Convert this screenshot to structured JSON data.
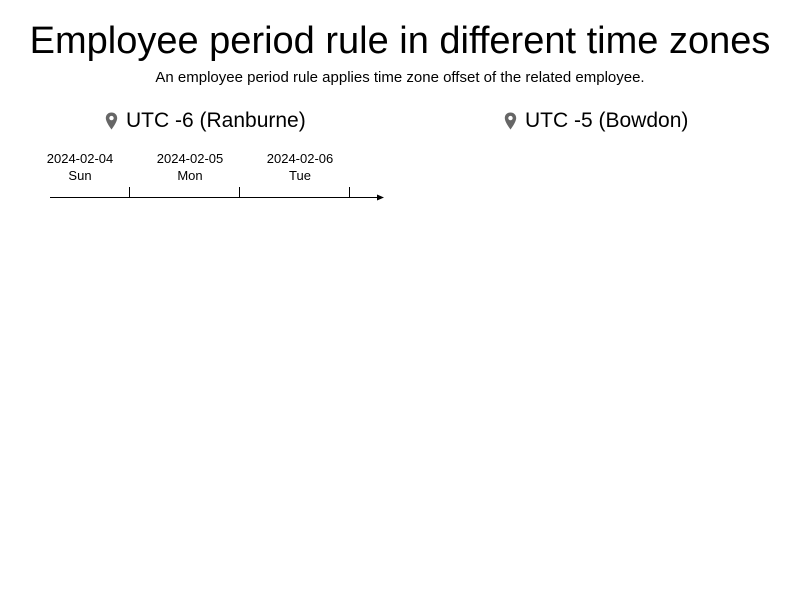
{
  "header": {
    "title": "Employee period rule in different time zones",
    "subtitle": "An employee period rule applies time zone offset of the related employee."
  },
  "zones": [
    {
      "label": "UTC -6 (Ranburne)",
      "icon": "map-pin-icon"
    },
    {
      "label": "UTC -5 (Bowdon)",
      "icon": "map-pin-icon"
    }
  ],
  "timeline": {
    "days": [
      {
        "date": "2024-02-04",
        "weekday": "Sun"
      },
      {
        "date": "2024-02-05",
        "weekday": "Mon"
      },
      {
        "date": "2024-02-06",
        "weekday": "Tue"
      }
    ]
  },
  "colors": {
    "icon": "#666666",
    "text": "#000000",
    "axis": "#000000"
  }
}
